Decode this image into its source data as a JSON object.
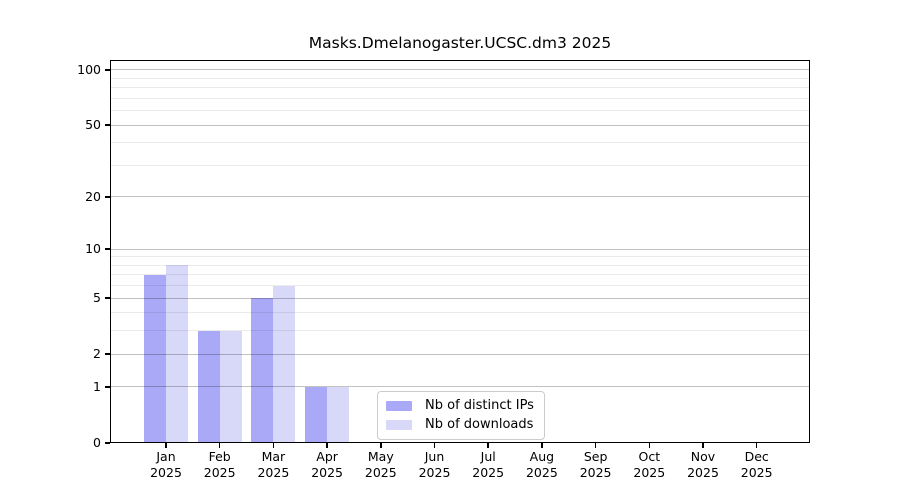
{
  "chart_data": {
    "type": "bar",
    "title": "Masks.Dmelanogaster.UCSC.dm3 2025",
    "categories": [
      "Jan",
      "Feb",
      "Mar",
      "Apr",
      "May",
      "Jun",
      "Jul",
      "Aug",
      "Sep",
      "Oct",
      "Nov",
      "Dec"
    ],
    "x_year_label": "2025",
    "series": [
      {
        "name": "Nb of distinct IPs",
        "color": "#a9a9f8",
        "values": [
          7,
          3,
          5,
          1,
          0,
          0,
          0,
          0,
          0,
          0,
          0,
          0
        ]
      },
      {
        "name": "Nb of downloads",
        "color": "#d8d8f8",
        "values": [
          8,
          3,
          6,
          1,
          0,
          0,
          0,
          0,
          0,
          0,
          0,
          0
        ]
      }
    ],
    "yscale": "log1p",
    "ylim": [
      0,
      113
    ],
    "yticks": [
      0,
      1,
      2,
      5,
      10,
      20,
      50,
      100
    ],
    "yticks_minor": [
      3,
      4,
      6,
      7,
      8,
      9,
      30,
      40,
      60,
      70,
      80,
      90
    ],
    "grid": "horizontal",
    "legend_position": "lower-center"
  }
}
